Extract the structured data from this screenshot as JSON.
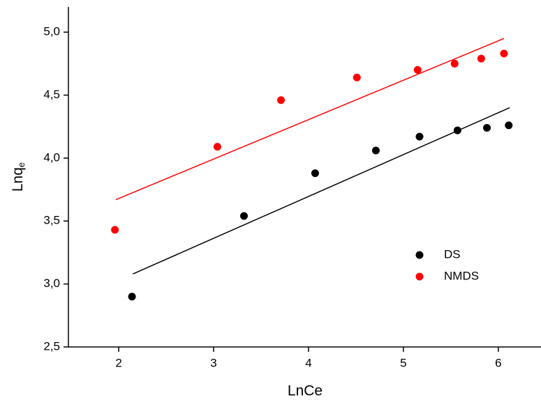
{
  "chart_data": {
    "type": "scatter",
    "xlabel": "LnCe",
    "ylabel": {
      "text": "Lnq",
      "subscript": "e"
    },
    "xlim": [
      1.47,
      6.45
    ],
    "ylim": [
      2.5,
      5.2
    ],
    "xticks": [
      2,
      3,
      4,
      5,
      6
    ],
    "yticks": [
      {
        "value": 2.5,
        "label": "2,5"
      },
      {
        "value": 3.0,
        "label": "3,0"
      },
      {
        "value": 3.5,
        "label": "3,5"
      },
      {
        "value": 4.0,
        "label": "4,0"
      },
      {
        "value": 4.5,
        "label": "4,5"
      },
      {
        "value": 5.0,
        "label": "5,0"
      }
    ],
    "legend": "lower-right",
    "series": [
      {
        "name": "DS",
        "color": "#000000",
        "x": [
          2.14,
          3.32,
          4.07,
          4.71,
          5.17,
          5.57,
          5.88,
          6.11
        ],
        "values": [
          2.9,
          3.54,
          3.88,
          4.06,
          4.17,
          4.22,
          4.24,
          4.26
        ],
        "fit": {
          "x": [
            2.15,
            6.12
          ],
          "values": [
            3.08,
            4.4
          ]
        }
      },
      {
        "name": "NMDS",
        "color": "#ff0000",
        "x": [
          1.96,
          3.04,
          3.71,
          4.51,
          5.15,
          5.54,
          5.82,
          6.06
        ],
        "values": [
          3.43,
          4.09,
          4.46,
          4.64,
          4.7,
          4.75,
          4.79,
          4.83
        ],
        "fit": {
          "x": [
            1.97,
            6.06
          ],
          "values": [
            3.67,
            4.95
          ]
        }
      }
    ]
  }
}
